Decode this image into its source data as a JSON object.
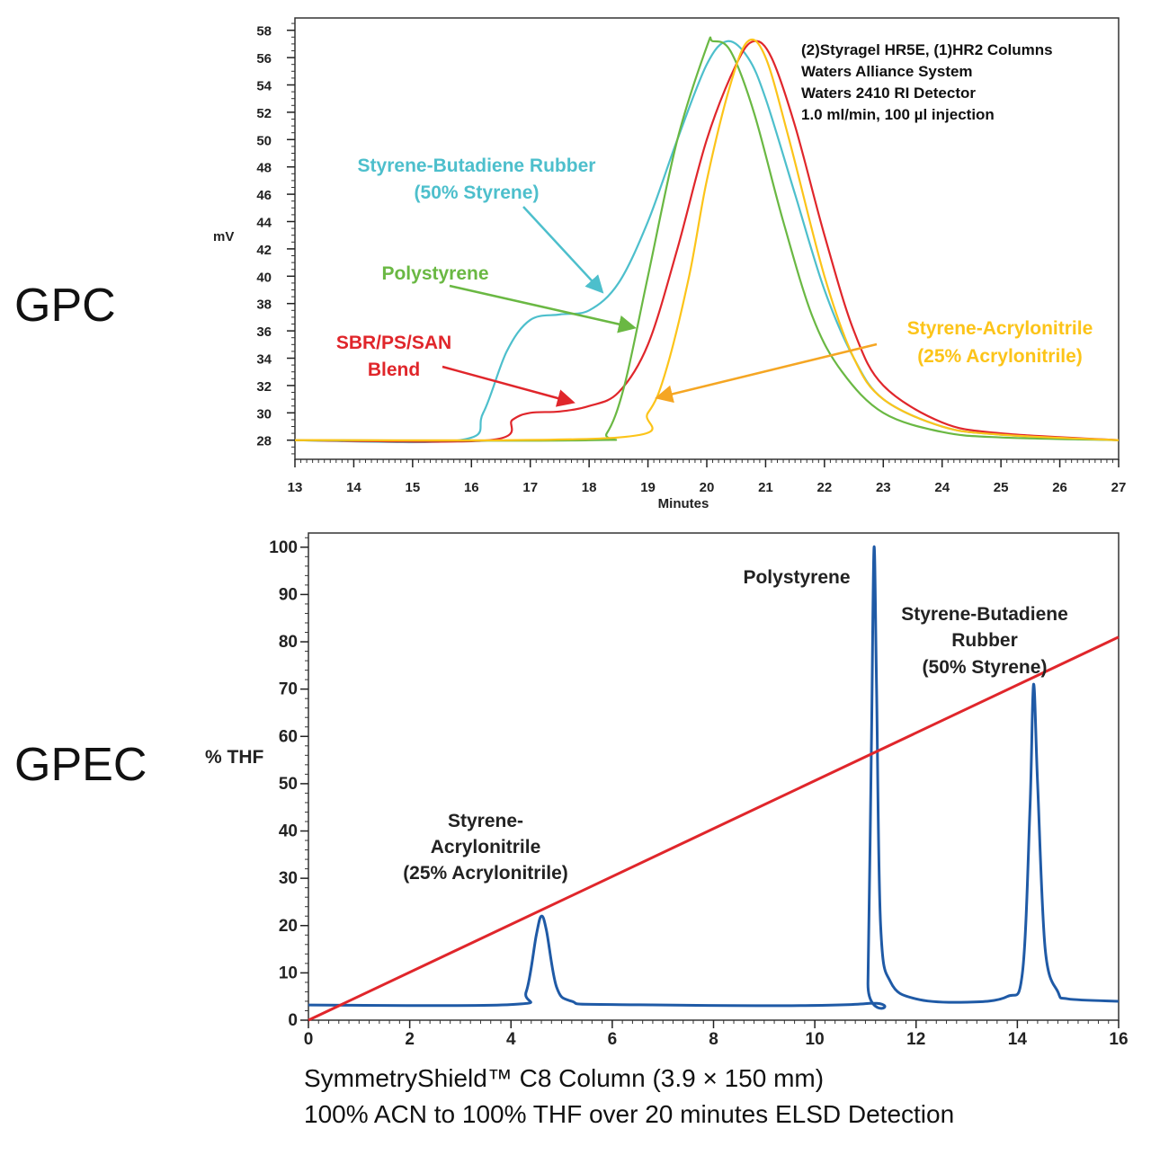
{
  "panels": {
    "top_label": "GPC",
    "bottom_label": "GPEC"
  },
  "chart_data": [
    {
      "type": "line",
      "xlabel": "Minutes",
      "ylabel": "mV",
      "xlim": [
        13,
        27
      ],
      "ylim": [
        26.6,
        58.9
      ],
      "xticks": [
        13,
        14,
        15,
        16,
        17,
        18,
        19,
        20,
        21,
        22,
        23,
        24,
        25,
        26,
        27
      ],
      "yticks": [
        28,
        30,
        32,
        34,
        36,
        38,
        40,
        42,
        44,
        46,
        48,
        50,
        52,
        54,
        56,
        58
      ],
      "grid": false,
      "notes": [
        "(2)Styragel HR5E, (1)HR2 Columns",
        "Waters Alliance System",
        "Waters 2410 RI Detector",
        "1.0 ml/min, 100 µl injection"
      ],
      "annotations": {
        "sbr": [
          "Styrene-Butadiene Rubber",
          "(50% Styrene)"
        ],
        "ps": [
          "Polystyrene"
        ],
        "blend": [
          "SBR/PS/SAN",
          "Blend"
        ],
        "san": [
          "Styrene-Acrylonitrile",
          "(25% Acrylonitrile)"
        ]
      },
      "series": [
        {
          "key": "sbr",
          "color": "#4dbfcc",
          "x": [
            13,
            15.8,
            16.2,
            16.6,
            17,
            17.5,
            18,
            18.5,
            19,
            19.5,
            20,
            20.35,
            20.7,
            21,
            21.5,
            22,
            22.5,
            23,
            24,
            25,
            27
          ],
          "y": [
            28,
            28,
            30,
            34.5,
            36.8,
            37.2,
            37.5,
            39.5,
            44,
            50,
            55.5,
            57.2,
            56,
            53,
            46,
            39,
            34,
            31,
            29,
            28.4,
            28
          ]
        },
        {
          "key": "blend",
          "color": "#e0262b",
          "x": [
            13,
            16.3,
            16.7,
            17,
            17.5,
            18,
            18.5,
            19,
            19.5,
            20,
            20.5,
            20.8,
            21.1,
            21.5,
            22,
            22.5,
            23,
            24,
            25,
            27
          ],
          "y": [
            28,
            28,
            29.5,
            30,
            30.1,
            30.5,
            31.5,
            35,
            42,
            50,
            55.5,
            57.2,
            56,
            51,
            43,
            36,
            32,
            29.3,
            28.5,
            28
          ]
        },
        {
          "key": "ps",
          "color": "#6ab843",
          "x": [
            13,
            18,
            18.3,
            18.6,
            19,
            19.5,
            20,
            20.1,
            20.4,
            20.8,
            21.3,
            21.8,
            22.3,
            23,
            24,
            25,
            27
          ],
          "y": [
            28,
            28,
            28.5,
            32,
            40,
            50,
            56.8,
            57.2,
            56.5,
            52,
            44,
            37,
            33,
            30,
            28.6,
            28.2,
            28
          ]
        },
        {
          "key": "san",
          "color": "#fcc419",
          "x": [
            13,
            18.5,
            19,
            19.3,
            19.7,
            20,
            20.4,
            20.7,
            21,
            21.4,
            22,
            22.5,
            23,
            24,
            25,
            27
          ],
          "y": [
            28,
            28.2,
            30,
            33,
            40,
            47,
            54,
            57.2,
            56,
            50,
            40,
            34,
            31,
            29,
            28.4,
            28
          ]
        }
      ]
    },
    {
      "type": "line",
      "ylabel": "% THF",
      "xlim": [
        0,
        16
      ],
      "ylim": [
        0,
        103
      ],
      "xticks": [
        0,
        2,
        4,
        6,
        8,
        10,
        12,
        14,
        16
      ],
      "yticks": [
        0,
        10,
        20,
        30,
        40,
        50,
        60,
        70,
        80,
        90,
        100
      ],
      "grid": false,
      "annotations": {
        "san": [
          "Styrene-",
          "Acrylonitrile",
          "(25% Acrylonitrile)"
        ],
        "ps": [
          "Polystyrene"
        ],
        "sbr": [
          "Styrene-Butadiene",
          "Rubber",
          "(50% Styrene)"
        ]
      },
      "series": [
        {
          "key": "elsd",
          "color": "#1f5aa6",
          "x": [
            0,
            4,
            4.3,
            4.5,
            4.6,
            4.7,
            4.9,
            5.2,
            6,
            11,
            11.05,
            11.12,
            11.17,
            11.22,
            11.3,
            11.5,
            12,
            13,
            13.8,
            14.1,
            14.25,
            14.32,
            14.4,
            14.55,
            14.8,
            15,
            16
          ],
          "y": [
            3.2,
            3.3,
            6,
            18,
            22,
            19,
            7,
            4,
            3.3,
            3.5,
            8,
            60,
            100,
            70,
            20,
            8,
            4.5,
            3.8,
            5,
            10,
            45,
            71,
            50,
            15,
            6,
            4.5,
            4
          ]
        },
        {
          "key": "gradient",
          "color": "#e0262b",
          "x": [
            0,
            16
          ],
          "y": [
            0,
            81
          ]
        }
      ]
    }
  ],
  "caption": [
    "SymmetryShield™ C8 Column (3.9 × 150 mm)",
    "100% ACN to 100% THF over 20 minutes ELSD Detection"
  ]
}
